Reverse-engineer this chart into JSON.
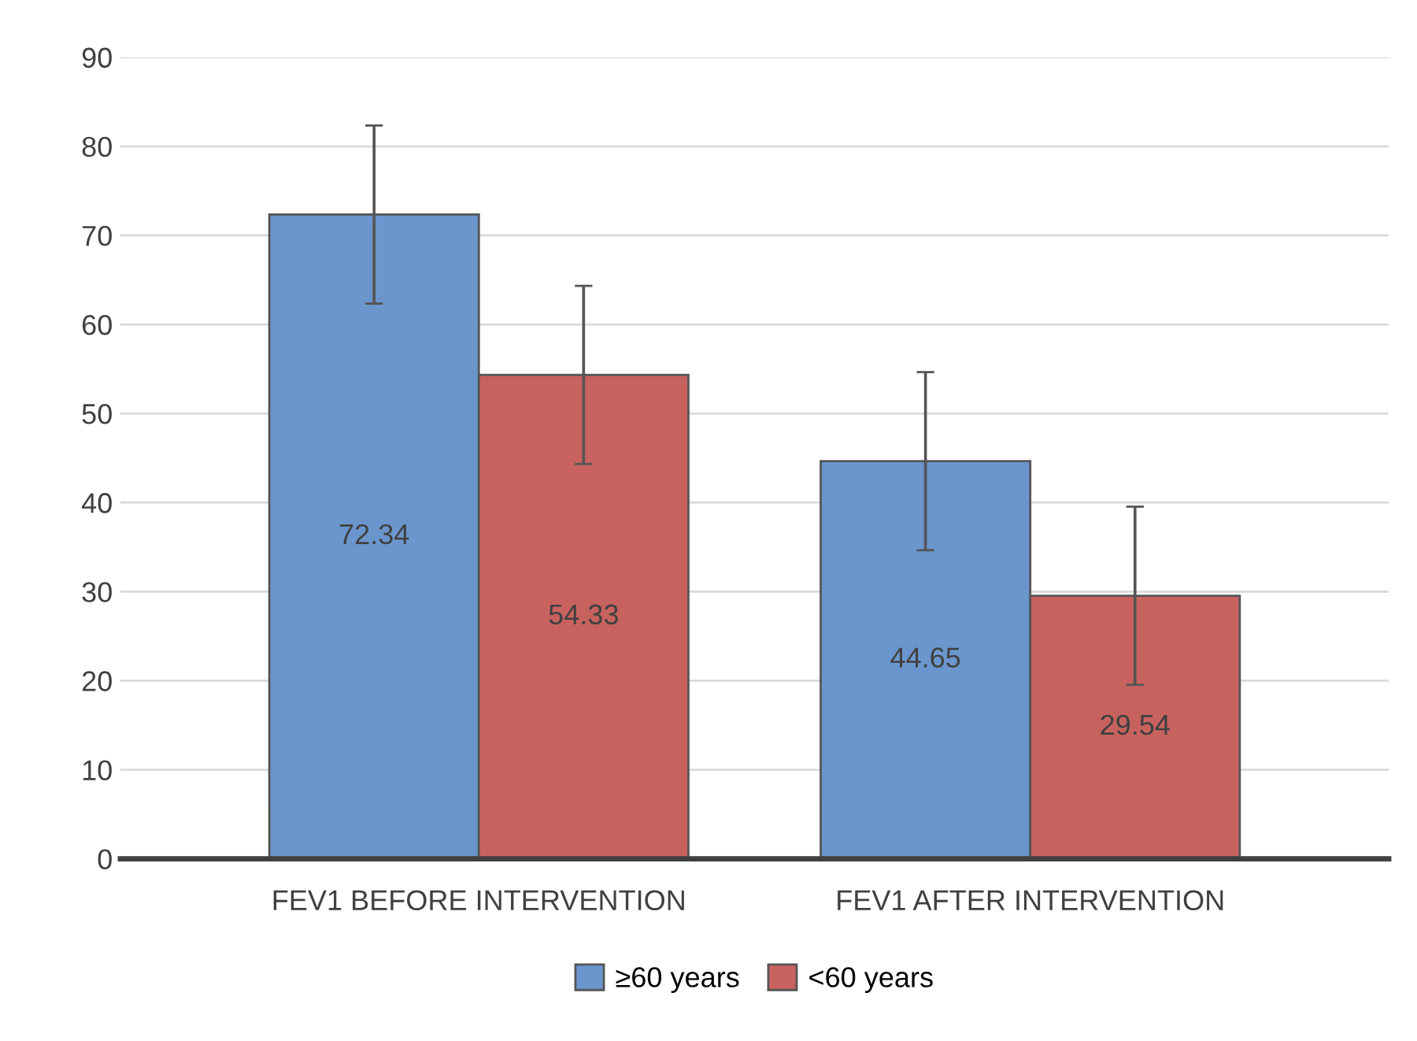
{
  "chart_data": {
    "type": "bar",
    "categories": [
      "FEV1 BEFORE INTERVENTION",
      "FEV1 AFTER INTERVENTION"
    ],
    "series": [
      {
        "name": "≥60 years",
        "color": "#6a96cd",
        "values": [
          72.34,
          44.65
        ],
        "errors": [
          10,
          10
        ]
      },
      {
        "name": "<60 years",
        "color": "#c8625f",
        "values": [
          54.33,
          29.54
        ],
        "errors": [
          10,
          10
        ]
      }
    ],
    "ylim": [
      0,
      90
    ],
    "yticks": [
      0,
      10,
      20,
      30,
      40,
      50,
      60,
      70,
      80,
      90
    ],
    "grid": "y",
    "legend": "bottom",
    "data_labels": true
  }
}
